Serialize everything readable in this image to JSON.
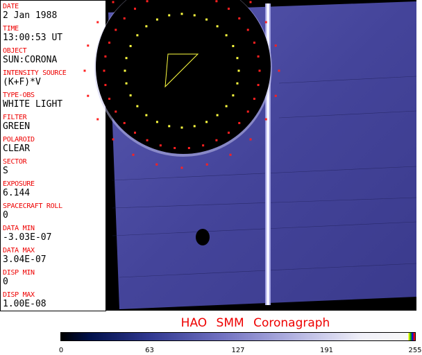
{
  "fields": [
    {
      "label": "DATE",
      "value": "2 Jan 1988"
    },
    {
      "label": "TIME",
      "value": "13:00:53 UT"
    },
    {
      "label": "OBJECT",
      "value": "SUN:CORONA"
    },
    {
      "label": "INTENSITY SOURCE",
      "value": "(K+F)*V"
    },
    {
      "label": "TYPE-OBS",
      "value": "WHITE LIGHT"
    },
    {
      "label": "FILTER",
      "value": "GREEN"
    },
    {
      "label": "POLAROID",
      "value": "CLEAR"
    },
    {
      "label": "SECTOR",
      "value": "S"
    },
    {
      "label": "EXPOSURE",
      "value": "6.144"
    },
    {
      "label": "SPACECRAFT ROLL",
      "value": "0"
    },
    {
      "label": "DATA MIN",
      "value": "-3.03E-07"
    },
    {
      "label": "DATA MAX",
      "value": "3.04E-07"
    },
    {
      "label": "DISP MIN",
      "value": "0"
    },
    {
      "label": "DISP MAX",
      "value": "1.00E-08"
    }
  ],
  "title": "HAO  SMM Coronagraph",
  "colorbar": {
    "ticks": [
      "0",
      "63",
      "127",
      "191",
      "255"
    ],
    "colormap": "black-blue-white",
    "overflow_colors": [
      "#ffff00",
      "#00aa00",
      "#0000ff",
      "#ee0000"
    ]
  },
  "colors": {
    "label": "#ee0000",
    "image_blue": "#4848a0"
  }
}
